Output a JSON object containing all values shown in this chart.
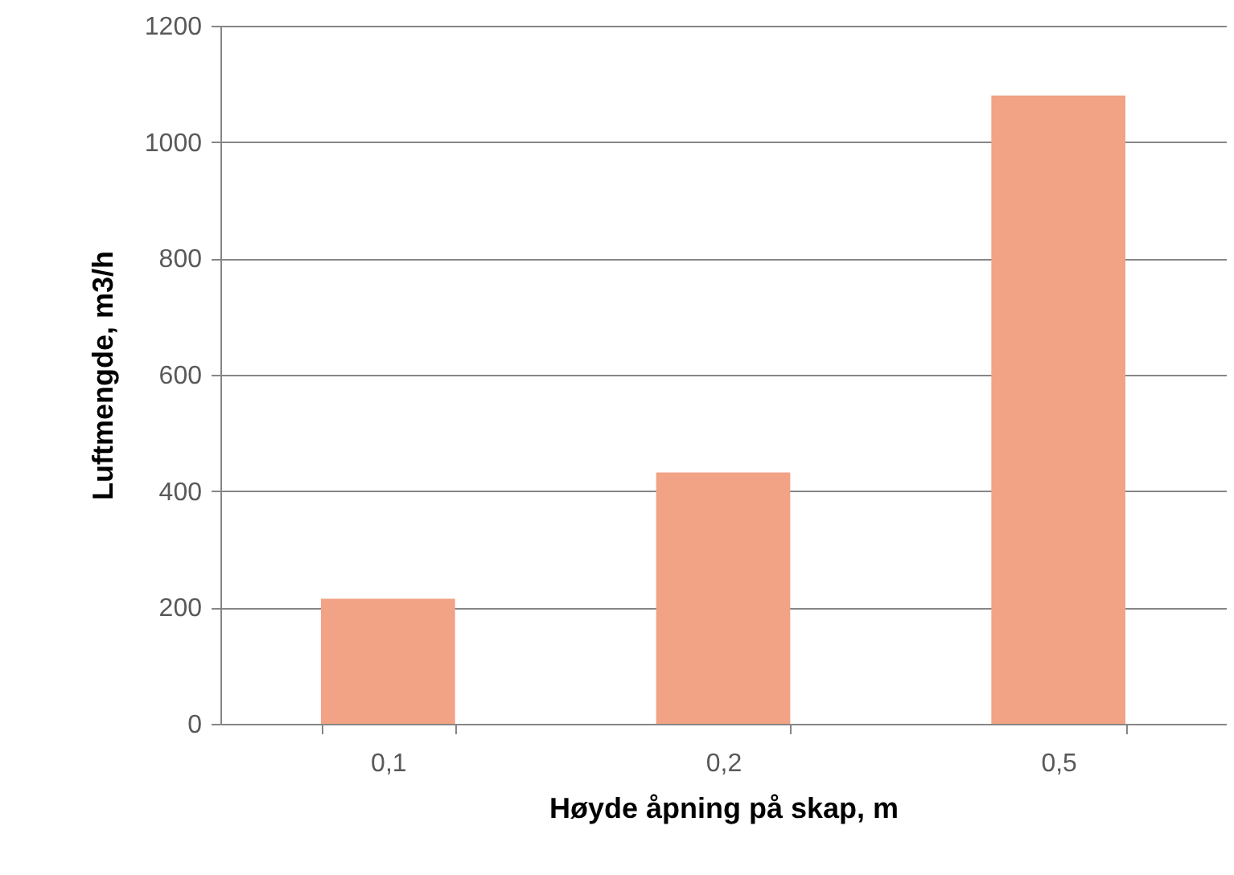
{
  "chart_data": {
    "type": "bar",
    "xlabel": "Høyde åpning på skap, m",
    "ylabel": "Luftmengde, m3/h",
    "categories": [
      "0,1",
      "0,2",
      "0,5"
    ],
    "values": [
      215,
      432,
      1080
    ],
    "color": "#f2a285",
    "ylim": [
      0,
      1200
    ],
    "yticks": [
      0,
      200,
      400,
      600,
      800,
      1000,
      1200
    ],
    "grid": "y"
  }
}
